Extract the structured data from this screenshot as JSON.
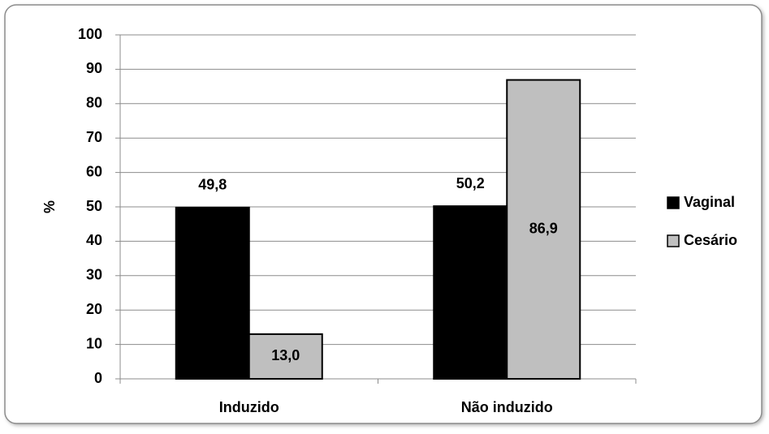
{
  "chart_data": {
    "type": "bar",
    "categories": [
      "Induzido",
      "Não induzido"
    ],
    "y_label": "%",
    "series": [
      {
        "name": "Vaginal",
        "color": "#000000",
        "values": [
          49.8,
          50.2
        ],
        "value_labels": [
          "49,8",
          "50,2"
        ]
      },
      {
        "name": "Cesário",
        "color": "#bfbfbf",
        "values": [
          13.0,
          86.9
        ],
        "value_labels": [
          "13,0",
          "86,9"
        ]
      }
    ],
    "ylim": [
      0,
      100
    ],
    "yticks": [
      0,
      10,
      20,
      30,
      40,
      50,
      60,
      70,
      80,
      90,
      100
    ],
    "grid": true,
    "legend": "right"
  }
}
